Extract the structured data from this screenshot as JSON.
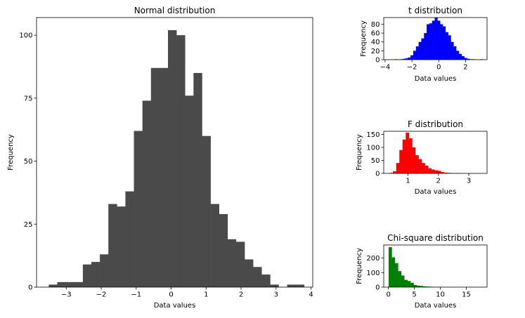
{
  "chart_data": [
    {
      "type": "bar",
      "title": "Normal distribution",
      "xlabel": "Data values",
      "ylabel": "Frequency",
      "color": "#4a4a4a",
      "bin_start": -3.5,
      "bin_width": 0.2435,
      "values": [
        1,
        2,
        2,
        2,
        9,
        10,
        13,
        33,
        32,
        38,
        62,
        74,
        87,
        87,
        102,
        100,
        76,
        85,
        60,
        33,
        29,
        19,
        18,
        11,
        8,
        5,
        1,
        0,
        1,
        1
      ],
      "xlim": [
        -3.85,
        4.05
      ],
      "ylim": [
        0,
        107
      ],
      "xticks": [
        -3,
        -2,
        -1,
        0,
        1,
        2,
        3,
        4
      ],
      "xtick_labels": [
        "−3",
        "−2",
        "−1",
        "0",
        "1",
        "2",
        "3",
        "4"
      ],
      "yticks": [
        0,
        25,
        50,
        75,
        100
      ],
      "ytick_labels": [
        "0",
        "25",
        "50",
        "75",
        "100"
      ]
    },
    {
      "type": "bar",
      "title": "t distribution",
      "xlabel": "Data values",
      "ylabel": "Frequency",
      "color": "#0000ff",
      "bin_start": -3.3,
      "bin_width": 0.2,
      "values": [
        1,
        0,
        1,
        2,
        3,
        5,
        10,
        20,
        30,
        40,
        48,
        60,
        80,
        82,
        88,
        95,
        88,
        80,
        75,
        62,
        55,
        40,
        30,
        20,
        13,
        8,
        4,
        2,
        1,
        1,
        0,
        0,
        1
      ],
      "xlim": [
        -4.1,
        3.6
      ],
      "ylim": [
        0,
        95
      ],
      "xticks": [
        -4,
        -2,
        0,
        2
      ],
      "xtick_labels": [
        "−4",
        "−2",
        "0",
        "2"
      ],
      "yticks": [
        0,
        20,
        40,
        60,
        80
      ],
      "ytick_labels": [
        "0",
        "20",
        "40",
        "60",
        "80"
      ]
    },
    {
      "type": "bar",
      "title": "F distribution",
      "xlabel": "Data values",
      "ylabel": "Frequency",
      "color": "#ff0000",
      "bin_start": 0.4,
      "bin_width": 0.105,
      "values": [
        2,
        8,
        40,
        90,
        130,
        157,
        135,
        100,
        70,
        55,
        40,
        30,
        20,
        15,
        12,
        10,
        5,
        3,
        2,
        1,
        1,
        1,
        0,
        0,
        0,
        0,
        0,
        0,
        0,
        0
      ],
      "xlim": [
        0.2,
        3.6
      ],
      "ylim": [
        0,
        162
      ],
      "xticks": [
        1,
        2,
        3
      ],
      "xtick_labels": [
        "1",
        "2",
        "3"
      ],
      "yticks": [
        0,
        50,
        100,
        150
      ],
      "ytick_labels": [
        "0",
        "50",
        "100",
        "150"
      ]
    },
    {
      "type": "bar",
      "title": "Chi-square distribution",
      "xlabel": "Data values",
      "ylabel": "Frequency",
      "color": "#008000",
      "bin_start": 0.05,
      "bin_width": 0.6,
      "values": [
        275,
        205,
        165,
        110,
        80,
        50,
        42,
        30,
        15,
        10,
        8,
        5,
        4,
        3,
        2,
        1,
        1,
        1,
        0,
        0,
        0,
        0,
        0,
        0,
        0,
        0,
        0,
        0,
        0,
        0
      ],
      "xlim": [
        -0.9,
        19
      ],
      "ylim": [
        0,
        290
      ],
      "xticks": [
        0,
        5,
        10,
        15
      ],
      "xtick_labels": [
        "0",
        "5",
        "10",
        "15"
      ],
      "yticks": [
        0,
        100,
        200
      ],
      "ytick_labels": [
        "0",
        "100",
        "200"
      ]
    }
  ]
}
